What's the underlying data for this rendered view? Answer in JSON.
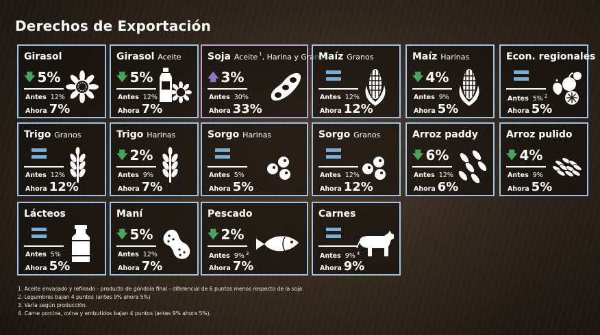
{
  "title": "Derechos de Exportación",
  "cards": [
    {
      "title": "Girasol",
      "sub": "",
      "delta": "5%",
      "antes": "12%",
      "ahora": "7%",
      "icon": "sunflower-icon"
    },
    {
      "title": "Girasol",
      "sub": "Aceite",
      "delta": "5%",
      "antes": "12%",
      "ahora": "7%",
      "icon": "oil-bottle-sunflower-icon"
    },
    {
      "title": "Soja",
      "sub": "Aceite",
      "sub_note": "1",
      "sub2": ", Harina y Granos",
      "delta": "3%",
      "antes": "30%",
      "ahora": "33%",
      "icon": "soybean-pod-icon"
    },
    {
      "title": "Maíz",
      "sub": "Granos",
      "delta": "",
      "antes": "12%",
      "ahora": "12%",
      "icon": "corn-icon"
    },
    {
      "title": "Maíz",
      "sub": "Harinas",
      "delta": "4%",
      "antes": "9%",
      "ahora": "5%",
      "icon": "corn-icon"
    },
    {
      "title": "Econ. regionales",
      "sub": "",
      "delta": "",
      "antes": "5%",
      "antes_note": "2",
      "ahora": "5%",
      "icon": "fruits-icon"
    },
    {
      "title": "Trigo",
      "sub": "Granos",
      "delta": "",
      "antes": "12%",
      "ahora": "12%",
      "icon": "wheat-icon"
    },
    {
      "title": "Trigo",
      "sub": "Harinas",
      "delta": "2%",
      "antes": "9%",
      "ahora": "7%",
      "icon": "wheat-icon"
    },
    {
      "title": "Sorgo",
      "sub": "Harinas",
      "delta": "",
      "antes": "5%",
      "ahora": "5%",
      "icon": "sorghum-grains-icon"
    },
    {
      "title": "Sorgo",
      "sub": "Granos",
      "delta": "",
      "antes": "12%",
      "ahora": "12%",
      "icon": "sorghum-grains-icon"
    },
    {
      "title": "Arroz paddy",
      "sub": "",
      "delta": "6%",
      "antes": "12%",
      "ahora": "6%",
      "icon": "rice-grains-icon"
    },
    {
      "title": "Arroz pulido",
      "sub": "",
      "delta": "4%",
      "antes": "9%",
      "ahora": "5%",
      "icon": "polished-rice-icon"
    },
    {
      "title": "Lácteos",
      "sub": "",
      "delta": "",
      "antes": "5%",
      "ahora": "5%",
      "icon": "milk-can-icon"
    },
    {
      "title": "Maní",
      "sub": "",
      "delta": "5%",
      "antes": "12%",
      "ahora": "7%",
      "icon": "peanut-icon"
    },
    {
      "title": "Pescado",
      "sub": "",
      "delta": "2%",
      "antes": "9%",
      "antes_note": "3",
      "ahora": "7%",
      "icon": "fish-icon"
    },
    {
      "title": "Carnes",
      "sub": "",
      "delta": "",
      "antes": "9%",
      "antes_note": "4",
      "ahora": "9%",
      "icon": "cow-icon"
    }
  ],
  "labels": {
    "antes": "Antes",
    "ahora": "Ahora"
  },
  "footnotes": [
    "1. Aceite envasado y refinado - producto de góndola final - diferencial de 6 puntos menos respecto de la soja.",
    "2. Legumbres bajan 4 puntos (antes 9% ahora 5%)",
    "3. Varía según producción.",
    "4. Carne porcina, ovina y embutidos bajan 4 puntos (antes 9% ahora 5%)."
  ],
  "colors": {
    "border": "#9fc4e6",
    "border_soja": "#b6a4d6",
    "down": "#49a45c",
    "up": "#8d76c4",
    "equal": "#6cb2e6"
  }
}
